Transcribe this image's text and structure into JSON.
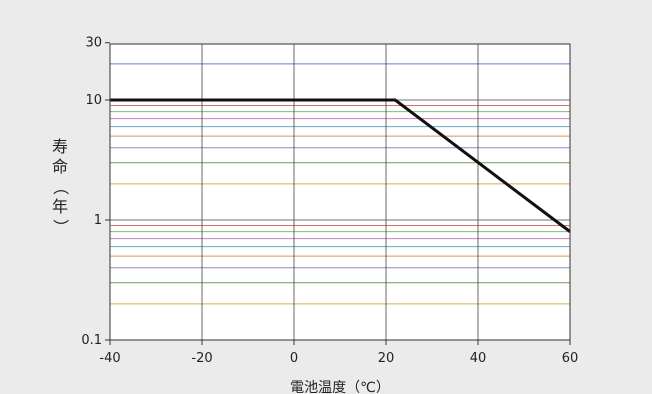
{
  "chart_data": {
    "type": "line",
    "xlabel": "電池温度（℃）",
    "ylabel": "寿命（年）",
    "xlim": [
      -40,
      60
    ],
    "ylim": [
      0.1,
      30
    ],
    "yscale": "log",
    "x_ticks": [
      -40,
      -20,
      0,
      20,
      40,
      60
    ],
    "x_tick_labels": [
      "-40",
      "-20",
      "0",
      "20",
      "40",
      "60"
    ],
    "y_ticks": [
      0.1,
      1,
      10,
      30
    ],
    "y_tick_labels": [
      "0.1",
      "1",
      "10",
      "30"
    ],
    "grid": true,
    "minor_gridline_levels": [
      0.2,
      0.3,
      0.4,
      0.5,
      0.6,
      0.7,
      0.8,
      0.9,
      2,
      3,
      4,
      5,
      6,
      7,
      8,
      9,
      20
    ],
    "minor_gridline_colors": [
      "#c8a030",
      "#5a8a3a",
      "#7a6fc8",
      "#d08040",
      "#4a9ac0",
      "#b86ab0",
      "#6ab06a",
      "#d05a5a",
      "#c8a030",
      "#5a8a3a",
      "#7a6fc8",
      "#d08040",
      "#4a9ac0",
      "#b86ab0",
      "#6ab06a",
      "#d05a5a",
      "#4a6ad0"
    ],
    "series": [
      {
        "color": "#111111",
        "x": [
          -40,
          22,
          60
        ],
        "y": [
          10,
          10,
          0.8
        ]
      }
    ]
  }
}
